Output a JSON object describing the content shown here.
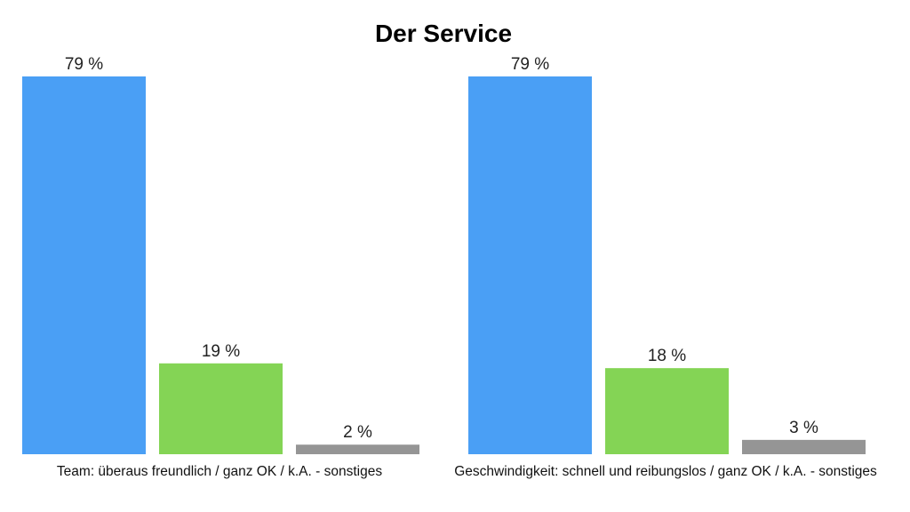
{
  "chart_data": [
    {
      "type": "bar",
      "title": "Der Service",
      "xlabel": "Team: überaus freundlich / ganz OK / k.A. - sonstiges",
      "categories": [
        "überaus freundlich",
        "ganz OK",
        "k.A. - sonstiges"
      ],
      "values": [
        79,
        19,
        2
      ],
      "value_labels": [
        "79 %",
        "19 %",
        "2 %"
      ],
      "colors": [
        "#4a9ff5",
        "#84d455",
        "#959595"
      ],
      "ylim": [
        0,
        79
      ],
      "grid": false
    },
    {
      "type": "bar",
      "xlabel": "Geschwindigkeit: schnell und reibungslos / ganz OK / k.A. - sonstiges",
      "categories": [
        "schnell und reibungslos",
        "ganz OK",
        "k.A. - sonstiges"
      ],
      "values": [
        79,
        18,
        3
      ],
      "value_labels": [
        "79 %",
        "18 %",
        "3 %"
      ],
      "colors": [
        "#4a9ff5",
        "#84d455",
        "#959595"
      ],
      "ylim": [
        0,
        79
      ],
      "grid": false
    }
  ]
}
